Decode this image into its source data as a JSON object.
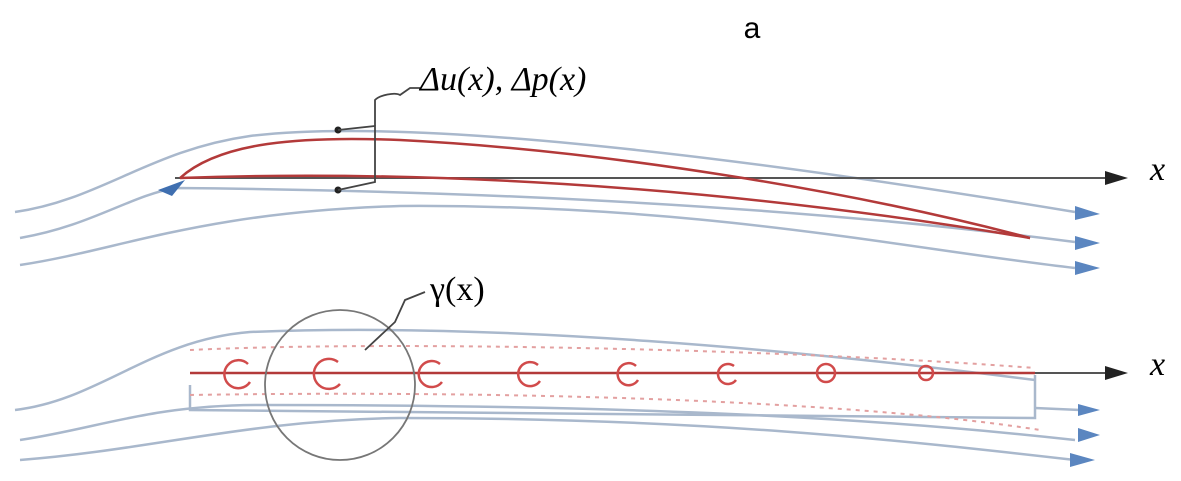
{
  "panel_label": "a",
  "top": {
    "annotation": "Δu(x), Δp(x)",
    "axis_label": "x"
  },
  "bottom": {
    "annotation": "γ(x)",
    "axis_label": "x"
  }
}
